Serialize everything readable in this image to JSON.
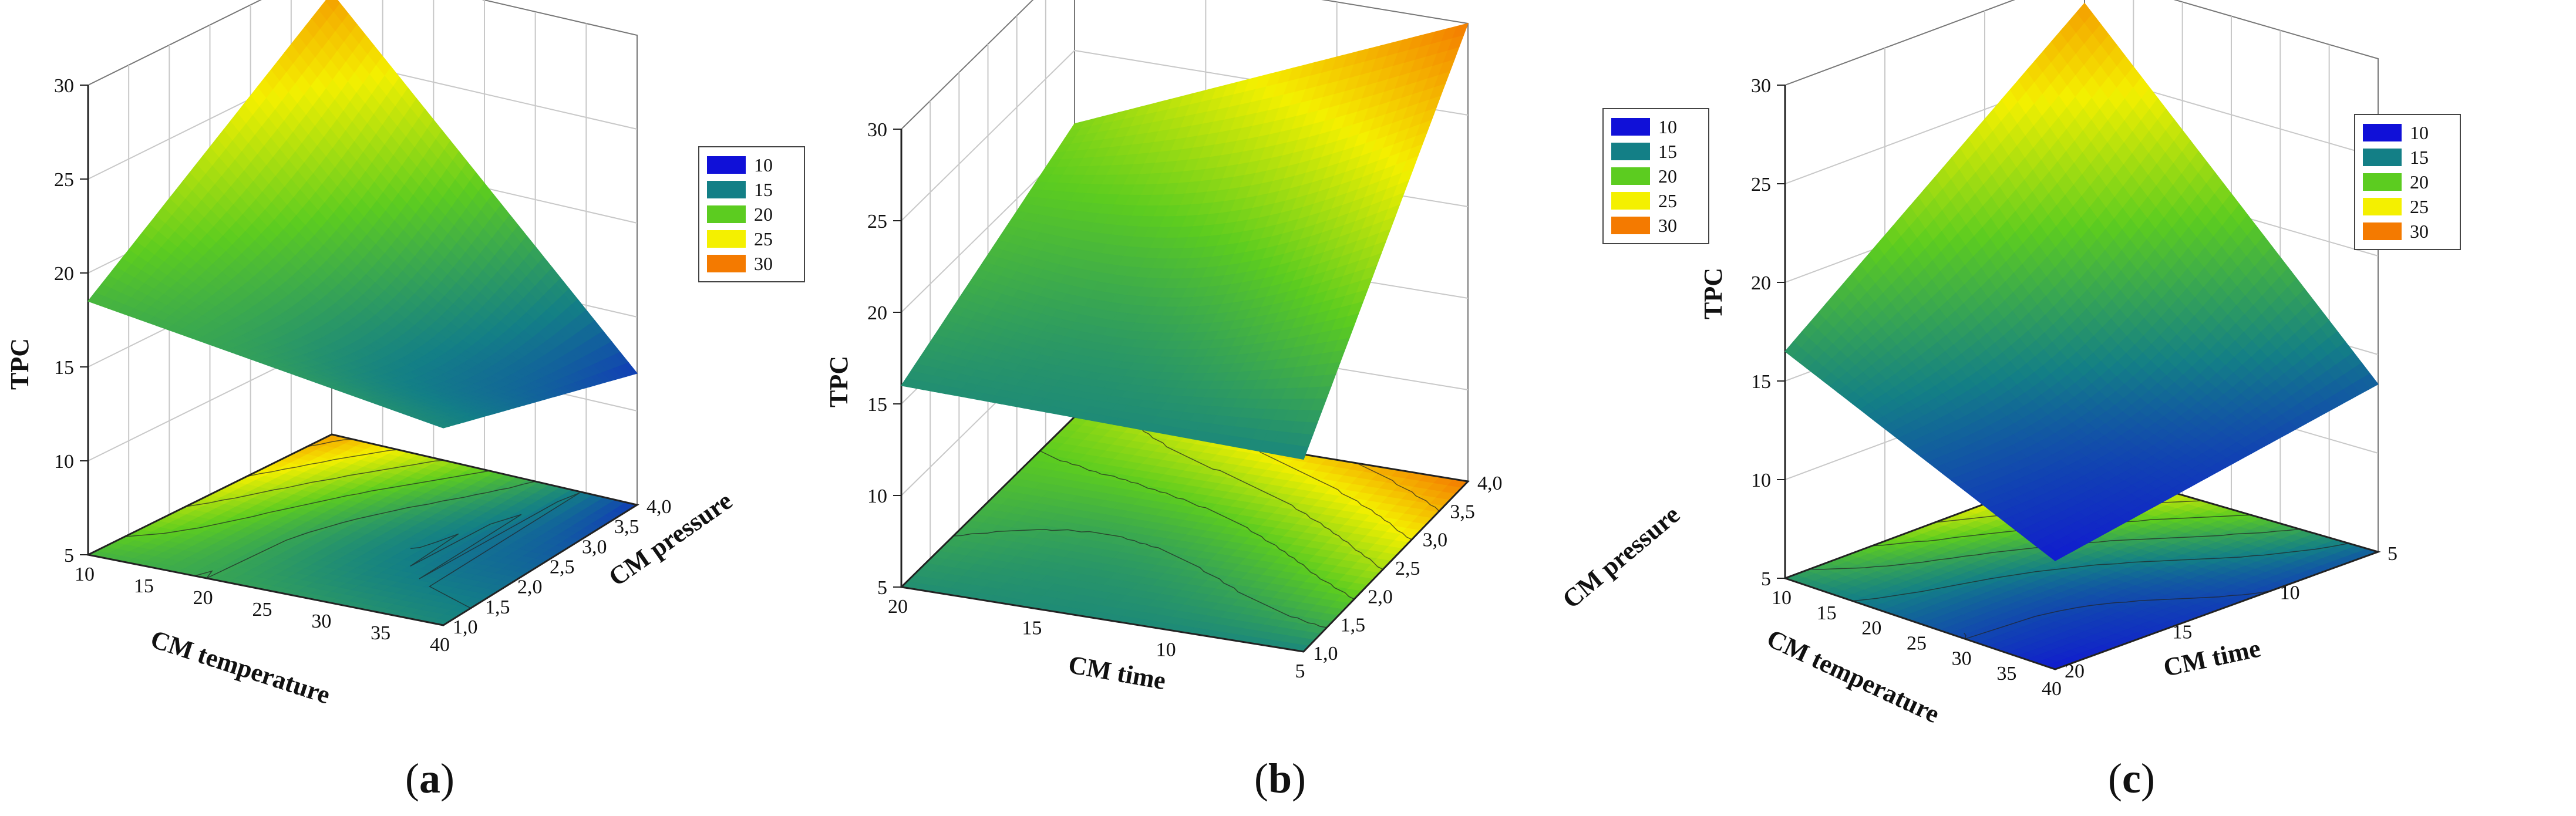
{
  "figure": {
    "colorscale": [
      {
        "value": 10,
        "color": "#1010d8"
      },
      {
        "value": 15,
        "color": "#137f86"
      },
      {
        "value": 20,
        "color": "#5ccc20"
      },
      {
        "value": 25,
        "color": "#f4f000"
      },
      {
        "value": 30,
        "color": "#f47a00"
      }
    ]
  },
  "chart_data": [
    {
      "type": "surface",
      "panel_label": "a",
      "zlabel": "TPC",
      "xlabel": "CM temperature",
      "ylabel": "CM pressure",
      "x_ticks": [
        "10",
        "15",
        "20",
        "25",
        "30",
        "35",
        "40"
      ],
      "y_ticks": [
        "1,0",
        "1,5",
        "2,0",
        "2,5",
        "3,0",
        "3,5",
        "4,0"
      ],
      "z_ticks": [
        "5",
        "10",
        "15",
        "20",
        "25",
        "30"
      ],
      "xlim": [
        10,
        40
      ],
      "ylim": [
        1.0,
        4.0
      ],
      "zlim": [
        5,
        30
      ],
      "legend": [
        "10",
        "15",
        "20",
        "25",
        "30"
      ],
      "grid": true,
      "legend_position": "right",
      "corner_values": {
        "x10_y1": 18.5,
        "x40_y1": 15.5,
        "x40_y4": 12.0,
        "x10_y4": 28.5
      }
    },
    {
      "type": "surface",
      "panel_label": "b",
      "zlabel": "TPC",
      "xlabel": "CM time",
      "ylabel": "CM pressure",
      "x_ticks": [
        "20",
        "15",
        "10",
        "5"
      ],
      "y_ticks": [
        "1,0",
        "1,5",
        "2,0",
        "2,5",
        "3,0",
        "3,5",
        "4,0"
      ],
      "z_ticks": [
        "5",
        "10",
        "15",
        "20",
        "25",
        "30"
      ],
      "xlim": [
        24,
        4
      ],
      "ylim": [
        1.0,
        4.0
      ],
      "zlim": [
        5,
        30
      ],
      "legend": [
        "10",
        "15",
        "20",
        "25",
        "30"
      ],
      "grid": true,
      "legend_position": "right",
      "corner_values": {
        "x24_y1": 16.0,
        "x4_y1": 15.5,
        "x4_y4": 30.0,
        "x24_y4": 21.0
      }
    },
    {
      "type": "surface",
      "panel_label": "c",
      "zlabel": "TPC",
      "xlabel": "CM temperature",
      "ylabel": "CM time",
      "x_ticks": [
        "10",
        "15",
        "20",
        "25",
        "30",
        "35",
        "40"
      ],
      "y_ticks": [
        "20",
        "15",
        "10",
        "5"
      ],
      "z_ticks": [
        "5",
        "10",
        "15",
        "20",
        "25",
        "30"
      ],
      "xlim": [
        10,
        40
      ],
      "ylim": [
        24,
        4
      ],
      "zlim": [
        5,
        30
      ],
      "legend": [
        "10",
        "15",
        "20",
        "25",
        "30"
      ],
      "grid": true,
      "legend_position": "right",
      "corner_values": {
        "x10_y24": 16.5,
        "x40_y24": 10.5,
        "x40_y4": 13.5,
        "x10_y4": 28.5
      }
    }
  ]
}
